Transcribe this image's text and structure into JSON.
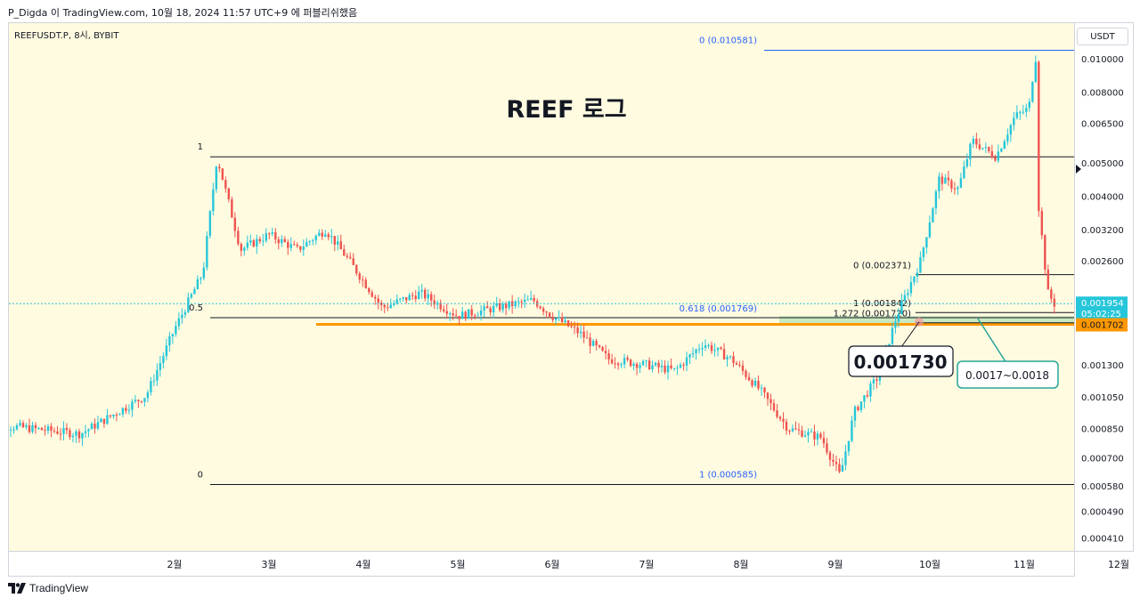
{
  "header": {
    "text": "P_Digda 이 TradingView.com, 10월 18, 2024 11:57 UTC+9 에 퍼블리쉬했음"
  },
  "symbol": {
    "label": "REEFUSDT.P, 8시, BYBIT"
  },
  "currency": "USDT",
  "footer": {
    "brand": "TradingView",
    "logo_icon": "tradingview-logo-icon"
  },
  "colors": {
    "bg": "#fffbe0",
    "up": "#26c6da",
    "down": "#ef5350",
    "fib_line": "#131722",
    "fib_blue": "#2962ff",
    "support": "#ff9800",
    "zone": "#8bd39a",
    "price_tag": "#26c6da",
    "support_tag": "#ff9800"
  },
  "chart_data": {
    "type": "candlestick",
    "title": "REEF 로그",
    "scale": "log",
    "ylim": [
      0.00037,
      0.0112
    ],
    "y_ticks": [
      "0.010000",
      "0.008000",
      "0.006500",
      "0.005000",
      "0.004000",
      "0.003200",
      "0.002600",
      "0.001300",
      "0.001050",
      "0.000850",
      "0.000700",
      "0.000580",
      "0.000490",
      "0.000410"
    ],
    "x_ticks": [
      "2월",
      "3월",
      "4월",
      "5월",
      "6월",
      "7월",
      "8월",
      "9월",
      "10월",
      "11월",
      "12월"
    ],
    "last_price": "0.001954",
    "countdown": "05:02:25",
    "support_price": "0.001702",
    "key_points": [
      {
        "m": 0.0,
        "p": 0.00088
      },
      {
        "m": 1.0,
        "p": 0.00082
      },
      {
        "m": 1.7,
        "p": 0.00106
      },
      {
        "m": 2.0,
        "p": 0.00165
      },
      {
        "m": 2.3,
        "p": 0.0024
      },
      {
        "m": 2.45,
        "p": 0.0052
      },
      {
        "m": 2.7,
        "p": 0.0028
      },
      {
        "m": 3.0,
        "p": 0.0031
      },
      {
        "m": 3.3,
        "p": 0.0028
      },
      {
        "m": 3.6,
        "p": 0.0032
      },
      {
        "m": 3.85,
        "p": 0.0026
      },
      {
        "m": 4.2,
        "p": 0.0019
      },
      {
        "m": 4.6,
        "p": 0.0021
      },
      {
        "m": 5.0,
        "p": 0.0018
      },
      {
        "m": 5.4,
        "p": 0.0019
      },
      {
        "m": 5.8,
        "p": 0.002
      },
      {
        "m": 6.0,
        "p": 0.0018
      },
      {
        "m": 6.3,
        "p": 0.0016
      },
      {
        "m": 6.6,
        "p": 0.00135
      },
      {
        "m": 7.0,
        "p": 0.0013
      },
      {
        "m": 7.3,
        "p": 0.00125
      },
      {
        "m": 7.6,
        "p": 0.0015
      },
      {
        "m": 7.9,
        "p": 0.00135
      },
      {
        "m": 8.2,
        "p": 0.0011
      },
      {
        "m": 8.5,
        "p": 0.00085
      },
      {
        "m": 8.85,
        "p": 0.0008
      },
      {
        "m": 9.05,
        "p": 0.00062
      },
      {
        "m": 9.2,
        "p": 0.00095
      },
      {
        "m": 9.45,
        "p": 0.0012
      },
      {
        "m": 9.65,
        "p": 0.0018
      },
      {
        "m": 9.9,
        "p": 0.0026
      },
      {
        "m": 10.1,
        "p": 0.0045
      },
      {
        "m": 10.3,
        "p": 0.0042
      },
      {
        "m": 10.45,
        "p": 0.0058
      },
      {
        "m": 10.7,
        "p": 0.0052
      },
      {
        "m": 10.9,
        "p": 0.0068
      },
      {
        "m": 11.05,
        "p": 0.0072
      },
      {
        "m": 11.12,
        "p": 0.0104
      },
      {
        "m": 11.15,
        "p": 0.0038
      },
      {
        "m": 11.25,
        "p": 0.0021
      },
      {
        "m": 11.32,
        "p": 0.00195
      }
    ],
    "fib_left": {
      "levels": [
        {
          "label": "1",
          "price": 0.0052
        },
        {
          "label": "0.5",
          "price": 0.00178
        },
        {
          "label": "0",
          "price": 0.000585
        }
      ]
    },
    "fib_right_top": {
      "label": "0 (0.010581)",
      "price": 0.010581
    },
    "fib_right_mid": {
      "label": "0.618 (0.001769)",
      "price": 0.001769
    },
    "fib_right_bottom": {
      "label": "1 (0.000585)",
      "price": 0.000585
    },
    "fib_small": [
      {
        "label": "0 (0.002371)",
        "price": 0.002371
      },
      {
        "label": "1 (0.001842)",
        "price": 0.001842
      },
      {
        "label": "1.272 (0.001720)",
        "price": 0.00172
      }
    ],
    "support_line": {
      "price": 0.001702
    },
    "zone": {
      "low": 0.0017,
      "high": 0.0018
    },
    "annotation_price": {
      "text": "0.001730",
      "price": 0.00173
    },
    "annotation_zone": {
      "text": "0.0017~0.0018"
    }
  }
}
